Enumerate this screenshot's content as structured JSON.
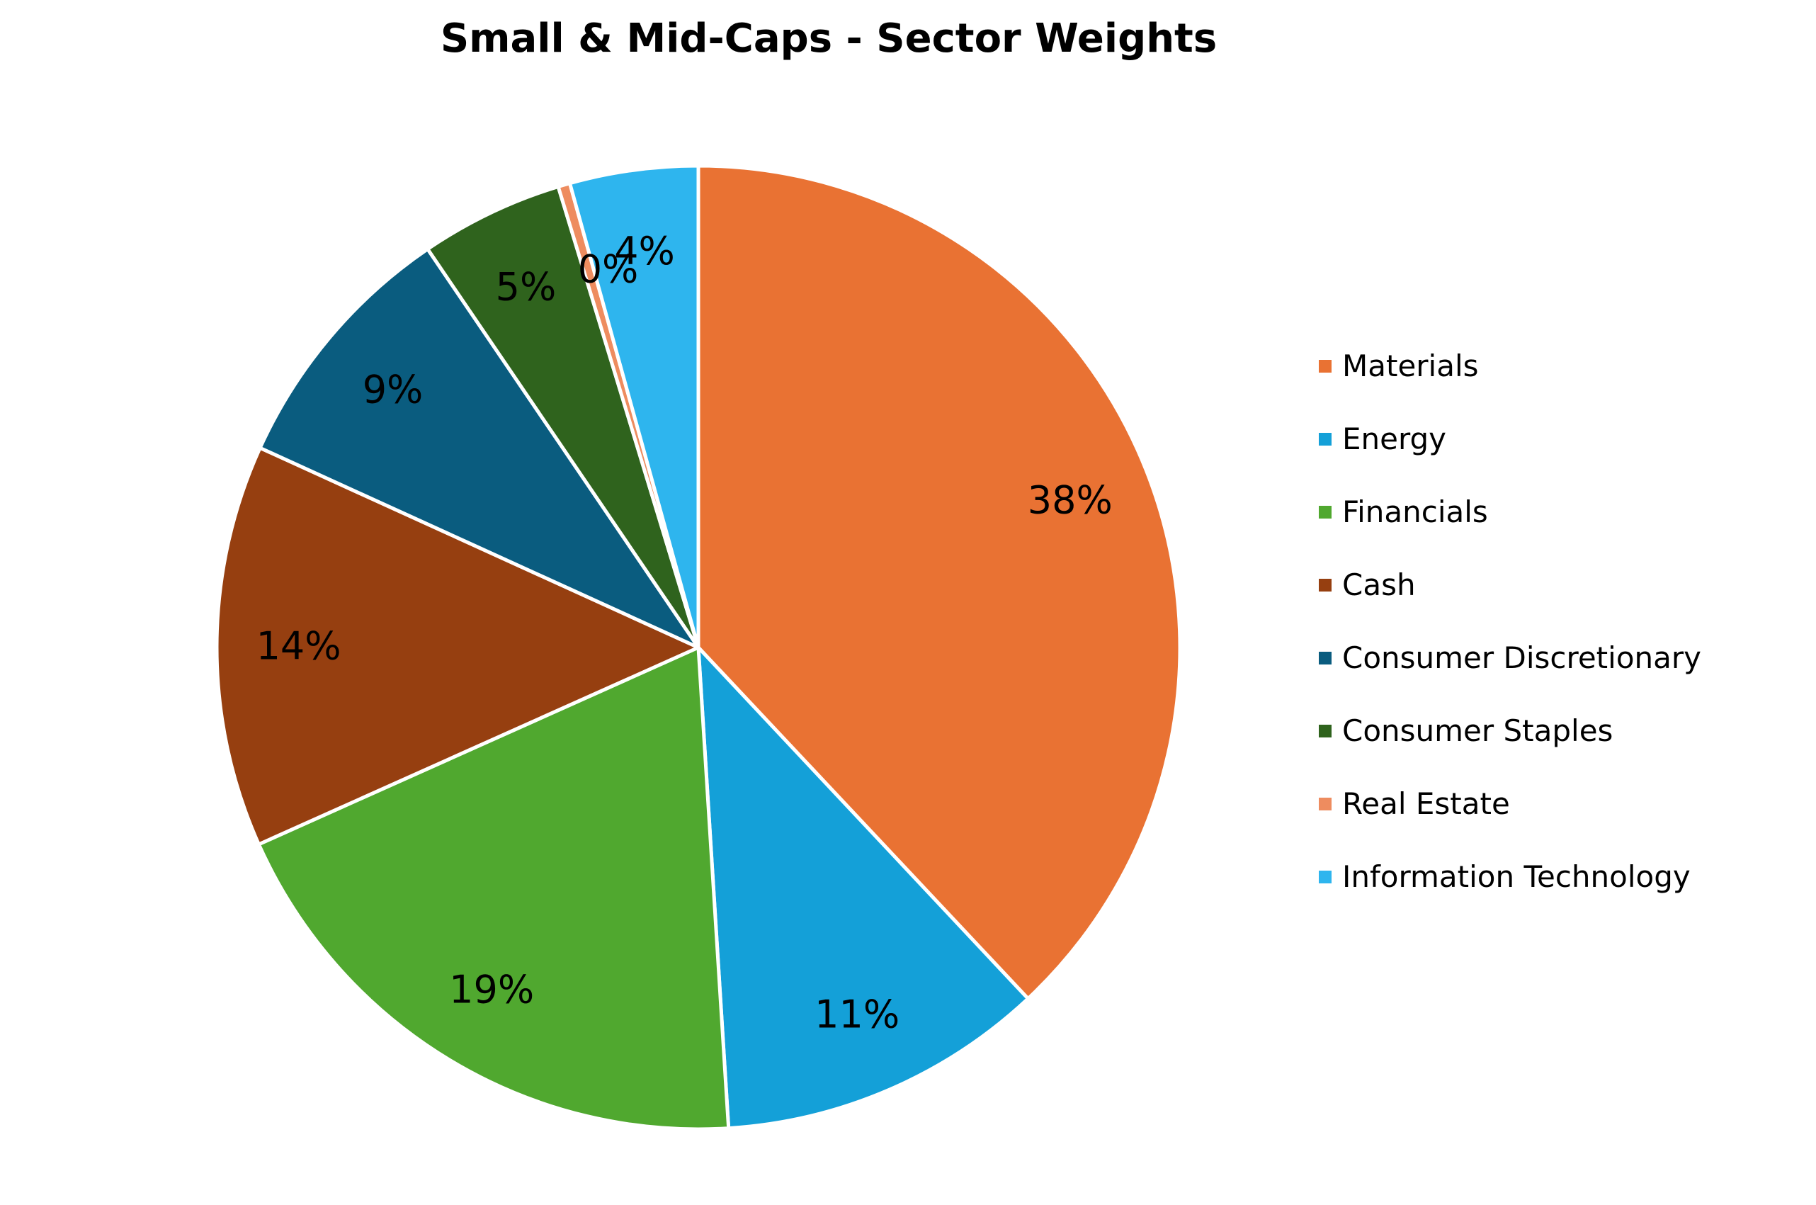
{
  "chart_data": {
    "type": "pie",
    "title": "Small & Mid-Caps - Sector Weights",
    "slices": [
      {
        "name": "Materials",
        "value": 38.0,
        "label": "38%",
        "color": "#E97233"
      },
      {
        "name": "Energy",
        "value": 11.0,
        "label": "11%",
        "color": "#14A0D8"
      },
      {
        "name": "Financials",
        "value": 19.3,
        "label": "19%",
        "color": "#50A82F"
      },
      {
        "name": "Cash",
        "value": 13.5,
        "label": "14%",
        "color": "#963F10"
      },
      {
        "name": "Consumer Discretionary",
        "value": 8.7,
        "label": "9%",
        "color": "#0A5C7F"
      },
      {
        "name": "Consumer Staples",
        "value": 4.8,
        "label": "5%",
        "color": "#2F631D"
      },
      {
        "name": "Real Estate",
        "value": 0.4,
        "label": "0%",
        "color": "#EE8C5F"
      },
      {
        "name": "Information Technology",
        "value": 4.3,
        "label": "4%",
        "color": "#2EB5EE"
      }
    ],
    "legend_position": "right",
    "start_angle_deg": 0,
    "direction": "clockwise"
  }
}
